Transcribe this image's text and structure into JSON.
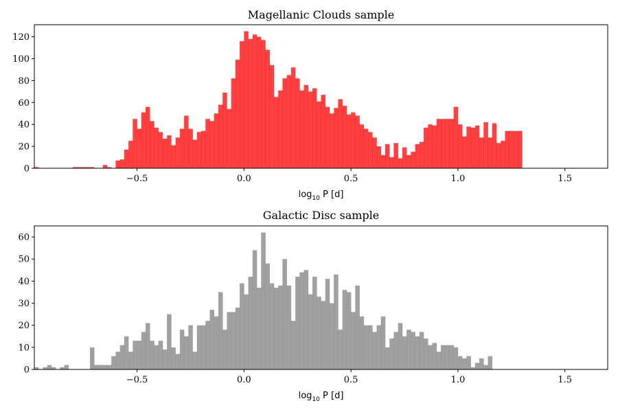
{
  "chart_data": [
    {
      "type": "bar",
      "title": "Magellanic Clouds sample",
      "xlabel": "log",
      "xlabel_sub": "10",
      "xlabel_rest": " P [d]",
      "color": "#ff0000",
      "alpha": 0.75,
      "xlim": [
        -0.98,
        1.7
      ],
      "ylim": [
        0,
        131
      ],
      "xticks": [
        -0.5,
        0.0,
        0.5,
        1.0,
        1.5
      ],
      "xtick_labels": [
        "−0.5",
        "0.0",
        "0.5",
        "1.0",
        "1.5"
      ],
      "yticks": [
        0,
        20,
        40,
        60,
        80,
        100,
        120
      ],
      "ytick_labels": [
        "0",
        "20",
        "40",
        "60",
        "80",
        "100",
        "120"
      ],
      "bin_start": -0.98,
      "bin_width": 0.02,
      "values": [
        1,
        0,
        0,
        0,
        0,
        0,
        0,
        0,
        0,
        1,
        1,
        1,
        1,
        1,
        0,
        0,
        3,
        1,
        0,
        7,
        8,
        17,
        25,
        45,
        36,
        51,
        56,
        43,
        37,
        33,
        27,
        30,
        21,
        28,
        36,
        48,
        36,
        26,
        33,
        34,
        45,
        43,
        50,
        58,
        69,
        54,
        82,
        99,
        116,
        125,
        118,
        122,
        120,
        117,
        108,
        94,
        65,
        71,
        82,
        85,
        92,
        82,
        71,
        76,
        70,
        73,
        61,
        67,
        56,
        50,
        55,
        63,
        57,
        49,
        51,
        48,
        40,
        36,
        33,
        28,
        20,
        12,
        22,
        10,
        23,
        9,
        19,
        12,
        15,
        22,
        24,
        37,
        40,
        39,
        45,
        45,
        45,
        45,
        56,
        40,
        29,
        38,
        37,
        39,
        28,
        42,
        28,
        41,
        23,
        25,
        34,
        34,
        34,
        34
      ]
    },
    {
      "type": "bar",
      "title": "Galactic Disc sample",
      "xlabel": "log",
      "xlabel_sub": "10",
      "xlabel_rest": " P [d]",
      "color": "#808080",
      "alpha": 0.75,
      "xlim": [
        -0.98,
        1.7
      ],
      "ylim": [
        0,
        65
      ],
      "xticks": [
        -0.5,
        0.0,
        0.5,
        1.0,
        1.5
      ],
      "xtick_labels": [
        "−0.5",
        "0.0",
        "0.5",
        "1.0",
        "1.5"
      ],
      "yticks": [
        0,
        10,
        20,
        30,
        40,
        50,
        60
      ],
      "ytick_labels": [
        "0",
        "10",
        "20",
        "30",
        "40",
        "50",
        "60"
      ],
      "bin_start": -0.98,
      "bin_width": 0.02,
      "values": [
        1,
        0,
        1,
        2,
        1,
        0,
        1,
        2,
        0,
        0,
        0,
        0,
        0,
        10,
        2,
        2,
        2,
        2,
        6,
        8,
        11,
        15,
        8,
        13,
        13,
        17,
        21,
        13,
        11,
        13,
        9,
        25,
        10,
        7,
        18,
        15,
        20,
        8,
        20,
        20,
        22,
        27,
        24,
        35,
        18,
        26,
        26,
        28,
        39,
        34,
        42,
        54,
        37,
        62,
        48,
        39,
        37,
        38,
        50,
        38,
        22,
        42,
        44,
        45,
        34,
        42,
        33,
        31,
        41,
        30,
        43,
        18,
        36,
        35,
        26,
        38,
        24,
        20,
        20,
        17,
        20,
        24,
        10,
        14,
        17,
        21,
        15,
        18,
        17,
        15,
        17,
        14,
        11,
        12,
        8,
        11,
        11,
        11,
        10,
        6,
        5,
        6,
        1,
        3,
        5,
        2,
        6
      ]
    }
  ]
}
